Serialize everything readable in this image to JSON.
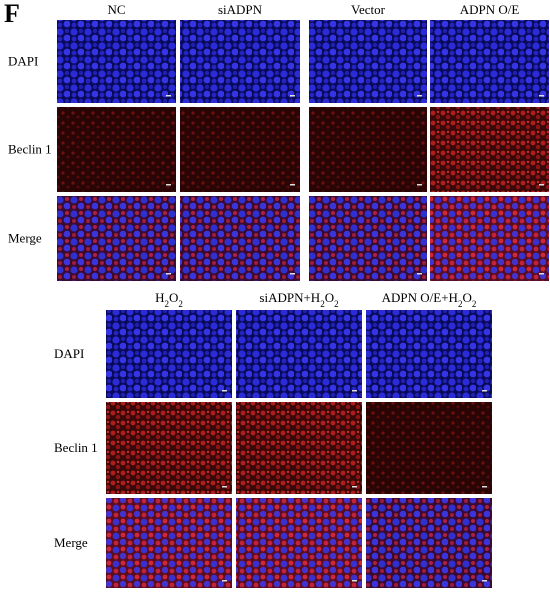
{
  "panel_label": "F",
  "top": {
    "columns": [
      "NC",
      "siADPN",
      "Vector",
      "ADPN O/E"
    ],
    "rows": [
      "DAPI",
      "Beclin 1",
      "Merge"
    ]
  },
  "bottom": {
    "columns": [
      [
        "H",
        "2",
        "O",
        "2"
      ],
      [
        "siADPN+H",
        "2",
        "O",
        "2"
      ],
      [
        "ADPN O/E+H",
        "2",
        "O",
        "2"
      ]
    ],
    "rows": [
      "DAPI",
      "Beclin 1",
      "Merge"
    ]
  }
}
